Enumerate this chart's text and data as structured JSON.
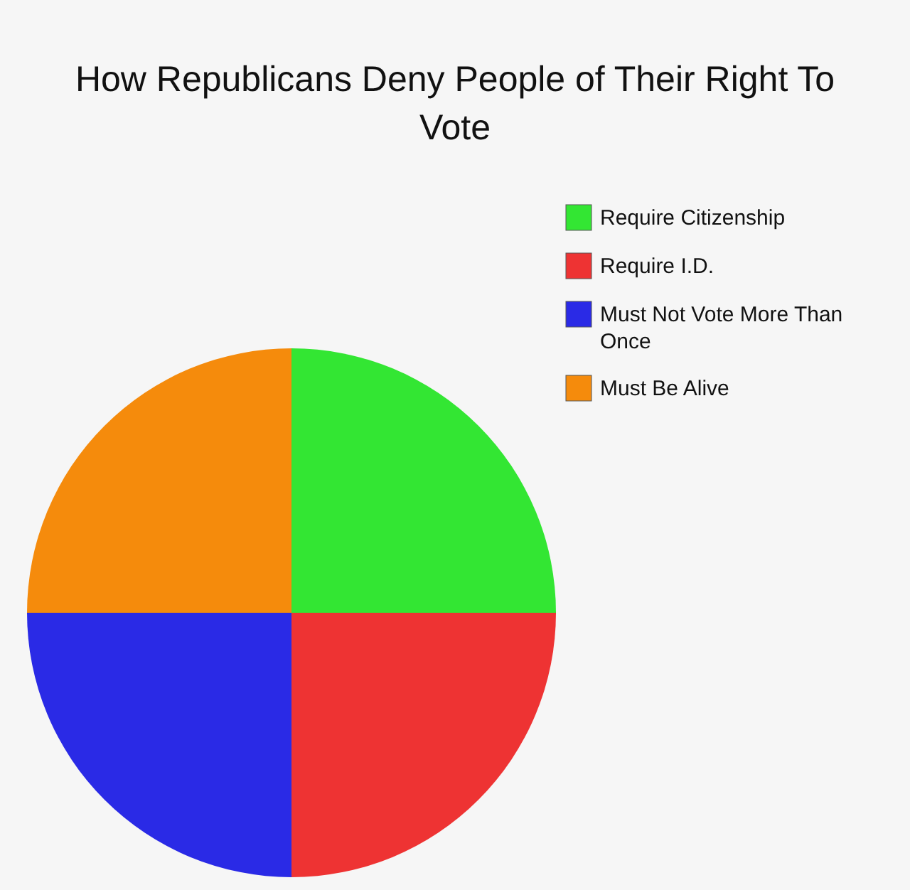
{
  "chart_data": {
    "type": "pie",
    "title": "How Republicans Deny People of Their Right To Vote",
    "categories": [
      "Require Citizenship",
      "Require I.D.",
      "Must Not Vote More Than Once",
      "Must Be Alive"
    ],
    "values": [
      25,
      25,
      25,
      25
    ],
    "colors": [
      "#33e633",
      "#ee3333",
      "#2a2ae6",
      "#f58b0c"
    ],
    "legend": "top right"
  }
}
